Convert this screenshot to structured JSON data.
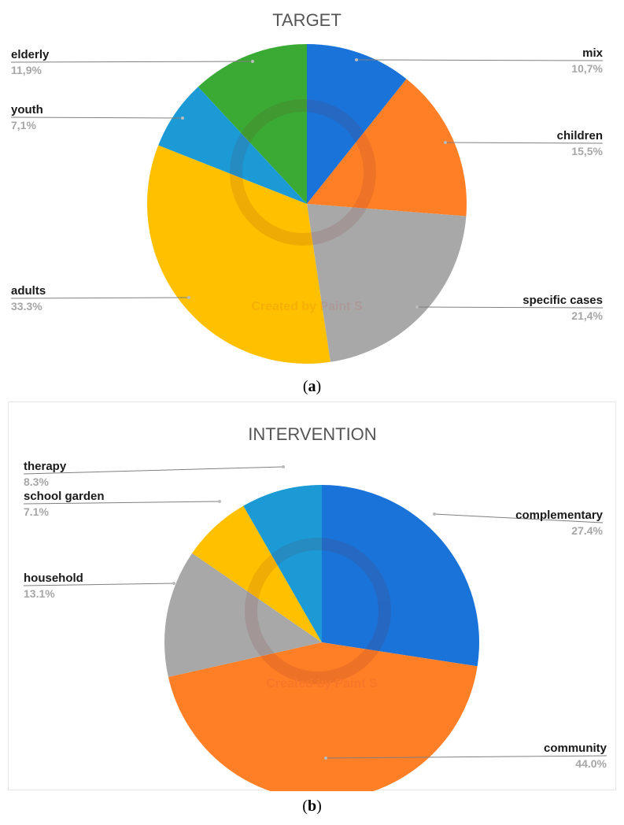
{
  "chart_data": [
    {
      "type": "pie",
      "title": "TARGET",
      "watermark": "Created by Paint S",
      "slices": [
        {
          "label": "mix",
          "value": 10.7,
          "display": "10,7%",
          "color": "#1a73d9"
        },
        {
          "label": "children",
          "value": 15.5,
          "display": "15,5%",
          "color": "#ff7f27"
        },
        {
          "label": "specific cases",
          "value": 21.4,
          "display": "21,4%",
          "color": "#a8a8a8"
        },
        {
          "label": "adults",
          "value": 33.3,
          "display": "33.3%",
          "color": "#ffc000"
        },
        {
          "label": "youth",
          "value": 7.1,
          "display": "7,1%",
          "color": "#1b9ad6"
        },
        {
          "label": "elderly",
          "value": 11.9,
          "display": "11,9%",
          "color": "#3aaa35"
        }
      ]
    },
    {
      "type": "pie",
      "title": "INTERVENTION",
      "watermark": "Created by Paint S",
      "slices": [
        {
          "label": "complementary",
          "value": 27.4,
          "display": "27.4%",
          "color": "#1a73d9"
        },
        {
          "label": "community",
          "value": 44.0,
          "display": "44.0%",
          "color": "#ff7f27"
        },
        {
          "label": "household",
          "value": 13.1,
          "display": "13.1%",
          "color": "#a8a8a8"
        },
        {
          "label": "school garden",
          "value": 7.1,
          "display": "7.1%",
          "color": "#ffc000"
        },
        {
          "label": "therapy",
          "value": 8.3,
          "display": "8.3%",
          "color": "#1b9ad6"
        }
      ]
    }
  ],
  "captions": {
    "a": "a",
    "b": "b"
  }
}
